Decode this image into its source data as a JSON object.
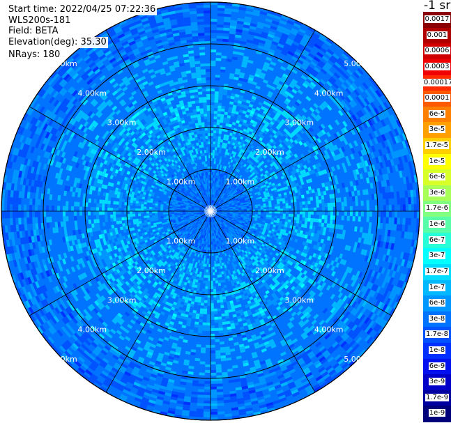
{
  "header": {
    "start_time": "Start time: 2022/04/25 07:22:36",
    "instrument": "WLS200s-181",
    "field": "Field: BETA",
    "elevation": "Elevation(deg): 35.30",
    "nrays": "NRays: 180"
  },
  "chart_data": {
    "type": "heatmap",
    "projection": "polar (PPI scan)",
    "field": "BETA",
    "n_rays": 180,
    "elevation_deg": 35.3,
    "range_rings_km": [
      1.0,
      2.0,
      3.0,
      4.0,
      5.0
    ],
    "ring_labels": [
      "1.00km",
      "2.00km",
      "3.00km",
      "4.00km",
      "5.00km"
    ],
    "radial_spokes_deg": [
      0,
      30,
      60,
      90,
      120,
      150,
      180,
      210,
      240,
      270,
      300,
      330
    ],
    "max_range_km": 5.0,
    "range_structure": [
      {
        "range_km": [
          0.0,
          1.0
        ],
        "beta": "1.7e-8"
      },
      {
        "range_km": [
          1.0,
          3.0
        ],
        "beta": "6e-8"
      },
      {
        "range_km": [
          3.0,
          4.0
        ],
        "beta": "6e-8"
      },
      {
        "range_km": [
          4.0,
          5.0
        ],
        "beta": "2e-8"
      }
    ],
    "colorbar": {
      "unit_label": "-1 sr",
      "labels": [
        "0.0017",
        "0.001",
        "0.0006",
        "0.0003",
        "0.00017",
        "0.0001",
        "6e-5",
        "3e-5",
        "1.7e-5",
        "1e-5",
        "6e-6",
        "3e-6",
        "1.7e-6",
        "1e-6",
        "6e-7",
        "3e-7",
        "1.7e-7",
        "1e-7",
        "6e-8",
        "3e-8",
        "1.7e-8",
        "1e-8",
        "6e-9",
        "3e-9",
        "1.7e-9",
        "1e-9"
      ],
      "colors": [
        "#8b0000",
        "#b00000",
        "#d10000",
        "#f00000",
        "#ff2a00",
        "#ff5a00",
        "#ff8000",
        "#ffa000",
        "#ffd000",
        "#ffff00",
        "#d8ff28",
        "#a8ff58",
        "#80ff80",
        "#58ffa8",
        "#28ffd8",
        "#00ffff",
        "#00dcff",
        "#00b8ff",
        "#0096ff",
        "#0074ff",
        "#0052ff",
        "#0030ff",
        "#0010ee",
        "#0000c8",
        "#0000a0",
        "#00007a"
      ]
    }
  }
}
